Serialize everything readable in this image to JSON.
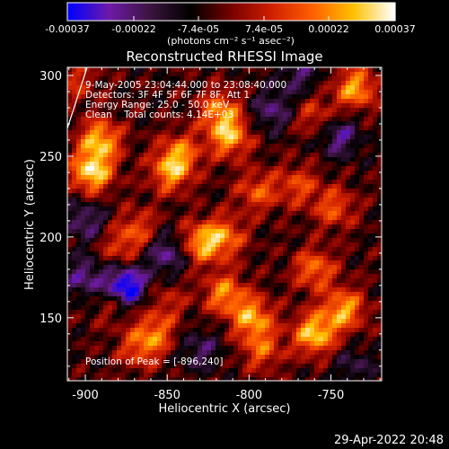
{
  "colorbar": {
    "tick_labels": [
      "-0.00037",
      "-0.00022",
      "-7.4e-05",
      "7.4e-05",
      "0.00022",
      "0.00037"
    ],
    "tick_values": [
      -0.00037,
      -0.00022,
      -7.4e-05,
      7.4e-05,
      0.00022,
      0.00037
    ],
    "range": [
      -0.00037,
      0.00037
    ],
    "units_label": "(photons cm⁻² s⁻¹ asec⁻²)"
  },
  "title": "Reconstructed RHESSI Image",
  "info_lines": [
    "9-May-2005 23:04:44.000 to 23:08:40.000",
    "Detectors: 3F 4F 5F 6F 7F 8F, Att 1",
    "Energy Range: 25.0 - 50.0 keV",
    "Clean    Total counts: 4.14E+03"
  ],
  "peak_label": "Position of Peak = [-896,240]",
  "footer_date": "29-Apr-2022 20:48",
  "chart_data": {
    "type": "heatmap",
    "title": "Reconstructed RHESSI Image",
    "xlabel": "Heliocentric X (arcsec)",
    "ylabel": "Heliocentric Y (arcsec)",
    "xlim": [
      -911,
      -719
    ],
    "ylim": [
      111,
      305
    ],
    "x_ticks": [
      -900,
      -850,
      -800,
      -750
    ],
    "x_tick_labels": [
      "-900",
      "-850",
      "-800",
      "-750"
    ],
    "y_ticks": [
      150,
      200,
      250,
      300
    ],
    "y_tick_labels": [
      "150",
      "200",
      "250",
      "300"
    ],
    "peak_position": [
      -896,
      240
    ],
    "value_range": [
      -0.00037,
      0.00037
    ],
    "colormap": [
      "#0000ff",
      "#6e1aa8",
      "#3c1440",
      "#000000",
      "#780000",
      "#d02000",
      "#ff6000",
      "#ffc000",
      "#ffffff"
    ],
    "hotspots": [
      {
        "x": -896,
        "y": 240,
        "value": 0.00037
      },
      {
        "x": -891,
        "y": 260,
        "value": 0.00032
      },
      {
        "x": -848,
        "y": 240,
        "value": 0.00026
      },
      {
        "x": -812,
        "y": 262,
        "value": 0.0003
      },
      {
        "x": -818,
        "y": 278,
        "value": 0.00025
      },
      {
        "x": -830,
        "y": 196,
        "value": 0.00028
      },
      {
        "x": -815,
        "y": 200,
        "value": 0.00024
      },
      {
        "x": -795,
        "y": 228,
        "value": 0.0002
      },
      {
        "x": -842,
        "y": 252,
        "value": 0.00022
      },
      {
        "x": -868,
        "y": 205,
        "value": 0.00018
      },
      {
        "x": -880,
        "y": 192,
        "value": 0.00015
      },
      {
        "x": -885,
        "y": 158,
        "value": 0.0001
      },
      {
        "x": -868,
        "y": 130,
        "value": 0.00016
      },
      {
        "x": -815,
        "y": 165,
        "value": 0.00026
      },
      {
        "x": -798,
        "y": 150,
        "value": 0.0003
      },
      {
        "x": -792,
        "y": 130,
        "value": 0.0002
      },
      {
        "x": -760,
        "y": 140,
        "value": 0.00035
      },
      {
        "x": -742,
        "y": 155,
        "value": 0.0003
      },
      {
        "x": -760,
        "y": 180,
        "value": 0.00024
      },
      {
        "x": -748,
        "y": 218,
        "value": 0.0002
      },
      {
        "x": -770,
        "y": 232,
        "value": 0.00018
      },
      {
        "x": -735,
        "y": 292,
        "value": 0.0003
      },
      {
        "x": -760,
        "y": 275,
        "value": 0.00016
      },
      {
        "x": -905,
        "y": 296,
        "value": 0.00014
      },
      {
        "x": -858,
        "y": 140,
        "value": 0.00022
      },
      {
        "x": -850,
        "y": 160,
        "value": 0.00012
      },
      {
        "x": -900,
        "y": 210,
        "value": -0.00018
      },
      {
        "x": -875,
        "y": 170,
        "value": -0.00037
      },
      {
        "x": -850,
        "y": 190,
        "value": -0.00022
      },
      {
        "x": -900,
        "y": 175,
        "value": -0.0002
      },
      {
        "x": -786,
        "y": 278,
        "value": -0.00018
      },
      {
        "x": -745,
        "y": 262,
        "value": -0.0002
      },
      {
        "x": -770,
        "y": 300,
        "value": -0.00015
      },
      {
        "x": -830,
        "y": 130,
        "value": -0.00015
      },
      {
        "x": -735,
        "y": 120,
        "value": -0.00012
      }
    ]
  }
}
